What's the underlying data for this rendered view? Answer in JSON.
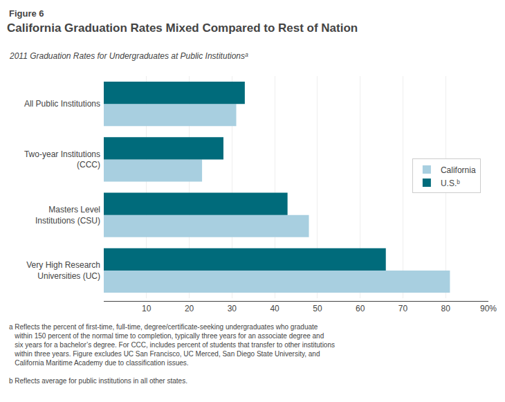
{
  "chart_data": {
    "type": "bar",
    "orientation": "horizontal",
    "title": "California Graduation Rates Mixed Compared to Rest of Nation",
    "subtitle": "2011 Graduation Rates for Undergraduates at Public Institutionsᵃ",
    "annotations": [
      "Figure 6",
      "a Reflects the percent of first-time, full-time, degree/certificate-seeking undergraduates who graduate\n   within 150 percent of the normal time to completion, typically three years for an associate degree and\n   six years for a bachelor’s degree. For CCC, includes percent of students that transfer to other institutions\n   within three years. Figure excludes UC San Francisco, UC Merced, San Diego State University, and\n   California Maritime Academy due to classification issues.",
      "b Reflects average for public institutions in all other states."
    ],
    "categories": [
      "Very High Research\nUniversities (UC)",
      "Masters Level\nInstitutions (CSU)",
      "Two-year Institutions\n(CCC)",
      "All Public Institutions"
    ],
    "series": [
      {
        "name": "California",
        "color": "#a8cfe0",
        "values": [
          81,
          48,
          23,
          31
        ]
      },
      {
        "name": "U.S.ᵇ",
        "color": "#006b7b",
        "values": [
          66,
          43,
          28,
          33
        ]
      }
    ],
    "xlim": [
      0,
      90
    ],
    "xticks": [
      10,
      20,
      30,
      40,
      50,
      60,
      70,
      80,
      {
        "value": 90,
        "label": "90%"
      }
    ],
    "grid": true,
    "legend": "right"
  }
}
